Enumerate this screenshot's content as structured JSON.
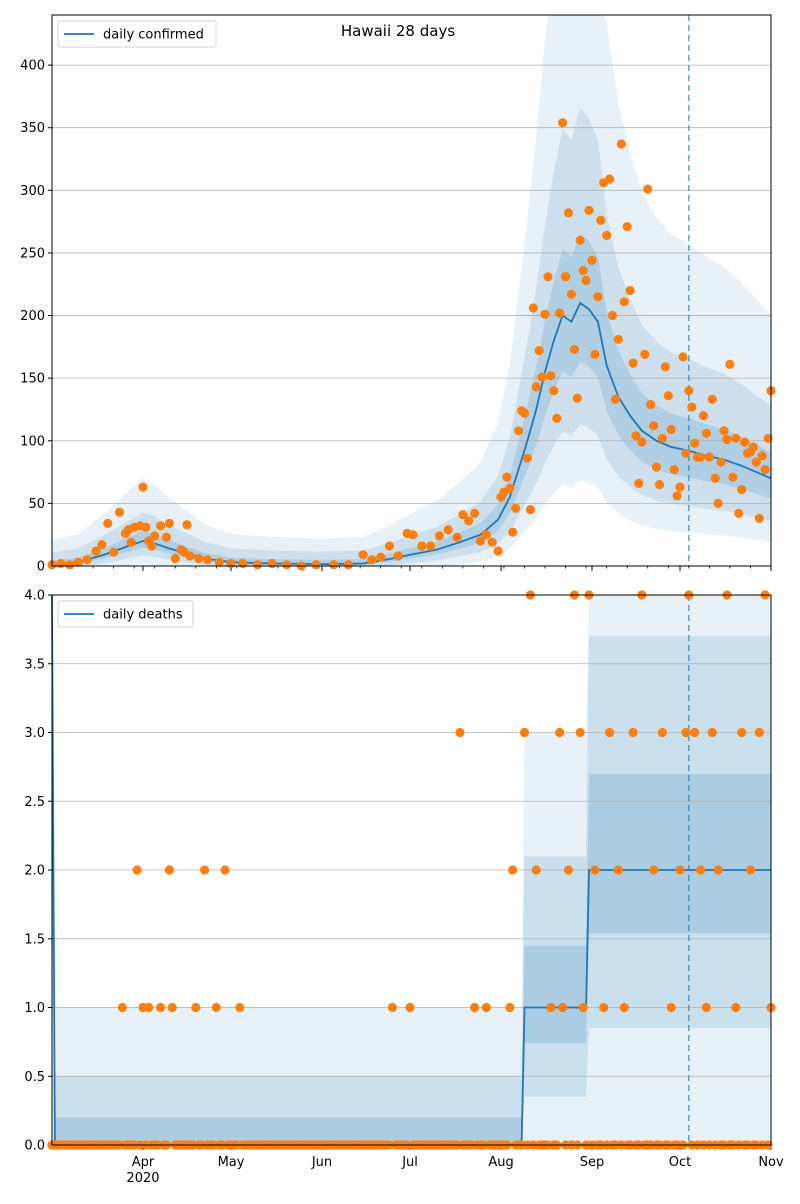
{
  "chart_data": [
    {
      "type": "line",
      "title": "Hawaii 28 days",
      "legend": [
        {
          "label": "daily confirmed",
          "color": "#1f77b4"
        }
      ],
      "legend_position": "top-left",
      "grid": "horizontal",
      "xlim": [
        "2020-03-01",
        "2020-11-01"
      ],
      "ylim": [
        0,
        440
      ],
      "y_ticks": [
        0,
        50,
        100,
        150,
        200,
        250,
        300,
        350,
        400
      ],
      "y_tick_labels": [
        "0",
        "50",
        "100",
        "150",
        "200",
        "250",
        "300",
        "350",
        "400"
      ],
      "x_ticks": [
        "2020-04-01",
        "2020-05-01",
        "2020-06-01",
        "2020-07-01",
        "2020-08-01",
        "2020-09-01",
        "2020-10-01",
        "2020-11-01"
      ],
      "x_tick_labels": [
        "Apr",
        "May",
        "Jun",
        "Jul",
        "Aug",
        "Sep",
        "Oct",
        "Nov"
      ],
      "x_year_label": "2020",
      "forecast_marker": "2020-10-04",
      "model_mean": [
        [
          "2020-03-01",
          1
        ],
        [
          "2020-03-10",
          3
        ],
        [
          "2020-03-20",
          10
        ],
        [
          "2020-03-27",
          16
        ],
        [
          "2020-04-01",
          20
        ],
        [
          "2020-04-05",
          18
        ],
        [
          "2020-04-10",
          14
        ],
        [
          "2020-04-16",
          10
        ],
        [
          "2020-04-22",
          6
        ],
        [
          "2020-05-01",
          3
        ],
        [
          "2020-05-15",
          2
        ],
        [
          "2020-06-01",
          1.5
        ],
        [
          "2020-06-15",
          2
        ],
        [
          "2020-06-25",
          6
        ],
        [
          "2020-07-01",
          9
        ],
        [
          "2020-07-10",
          13
        ],
        [
          "2020-07-18",
          19
        ],
        [
          "2020-07-25",
          25
        ],
        [
          "2020-07-31",
          37
        ],
        [
          "2020-08-04",
          55
        ],
        [
          "2020-08-08",
          85
        ],
        [
          "2020-08-10",
          100
        ],
        [
          "2020-08-13",
          125
        ],
        [
          "2020-08-16",
          155
        ],
        [
          "2020-08-19",
          180
        ],
        [
          "2020-08-22",
          200
        ],
        [
          "2020-08-25",
          195
        ],
        [
          "2020-08-28",
          210
        ],
        [
          "2020-08-31",
          205
        ],
        [
          "2020-09-03",
          195
        ],
        [
          "2020-09-06",
          160
        ],
        [
          "2020-09-10",
          135
        ],
        [
          "2020-09-14",
          120
        ],
        [
          "2020-09-18",
          108
        ],
        [
          "2020-09-23",
          100
        ],
        [
          "2020-09-28",
          95
        ],
        [
          "2020-10-04",
          92
        ],
        [
          "2020-10-10",
          88
        ],
        [
          "2020-10-16",
          85
        ],
        [
          "2020-10-22",
          80
        ],
        [
          "2020-10-27",
          75
        ],
        [
          "2020-11-01",
          70
        ]
      ],
      "observed": [
        [
          "2020-03-01",
          1
        ],
        [
          "2020-03-04",
          2
        ],
        [
          "2020-03-07",
          1
        ],
        [
          "2020-03-10",
          3
        ],
        [
          "2020-03-13",
          5
        ],
        [
          "2020-03-16",
          12
        ],
        [
          "2020-03-18",
          17
        ],
        [
          "2020-03-20",
          34
        ],
        [
          "2020-03-22",
          11
        ],
        [
          "2020-03-24",
          43
        ],
        [
          "2020-03-26",
          26
        ],
        [
          "2020-03-27",
          29
        ],
        [
          "2020-03-28",
          19
        ],
        [
          "2020-03-29",
          31
        ],
        [
          "2020-03-31",
          32
        ],
        [
          "2020-04-01",
          63
        ],
        [
          "2020-04-02",
          31
        ],
        [
          "2020-04-03",
          20
        ],
        [
          "2020-04-04",
          16
        ],
        [
          "2020-04-05",
          24
        ],
        [
          "2020-04-07",
          32
        ],
        [
          "2020-04-09",
          23
        ],
        [
          "2020-04-10",
          34
        ],
        [
          "2020-04-12",
          6
        ],
        [
          "2020-04-14",
          13
        ],
        [
          "2020-04-15",
          11
        ],
        [
          "2020-04-16",
          33
        ],
        [
          "2020-04-17",
          8
        ],
        [
          "2020-04-20",
          6
        ],
        [
          "2020-04-23",
          5
        ],
        [
          "2020-04-27",
          3
        ],
        [
          "2020-05-01",
          2
        ],
        [
          "2020-05-05",
          2
        ],
        [
          "2020-05-10",
          1
        ],
        [
          "2020-05-15",
          2
        ],
        [
          "2020-05-20",
          1
        ],
        [
          "2020-05-25",
          0
        ],
        [
          "2020-05-30",
          1
        ],
        [
          "2020-06-05",
          1
        ],
        [
          "2020-06-10",
          1
        ],
        [
          "2020-06-15",
          9
        ],
        [
          "2020-06-18",
          5
        ],
        [
          "2020-06-21",
          7
        ],
        [
          "2020-06-24",
          16
        ],
        [
          "2020-06-27",
          8
        ],
        [
          "2020-06-30",
          26
        ],
        [
          "2020-07-02",
          25
        ],
        [
          "2020-07-05",
          16
        ],
        [
          "2020-07-08",
          16
        ],
        [
          "2020-07-11",
          24
        ],
        [
          "2020-07-14",
          29
        ],
        [
          "2020-07-17",
          23
        ],
        [
          "2020-07-19",
          41
        ],
        [
          "2020-07-21",
          36
        ],
        [
          "2020-07-23",
          42
        ],
        [
          "2020-07-25",
          20
        ],
        [
          "2020-07-27",
          25
        ],
        [
          "2020-07-29",
          19
        ],
        [
          "2020-07-31",
          12
        ],
        [
          "2020-08-01",
          55
        ],
        [
          "2020-08-02",
          59
        ],
        [
          "2020-08-03",
          71
        ],
        [
          "2020-08-04",
          62
        ],
        [
          "2020-08-05",
          27
        ],
        [
          "2020-08-06",
          46
        ],
        [
          "2020-08-07",
          108
        ],
        [
          "2020-08-08",
          124
        ],
        [
          "2020-08-09",
          122
        ],
        [
          "2020-08-10",
          86
        ],
        [
          "2020-08-11",
          45
        ],
        [
          "2020-08-12",
          206
        ],
        [
          "2020-08-13",
          143
        ],
        [
          "2020-08-14",
          172
        ],
        [
          "2020-08-15",
          151
        ],
        [
          "2020-08-16",
          201
        ],
        [
          "2020-08-17",
          231
        ],
        [
          "2020-08-18",
          152
        ],
        [
          "2020-08-19",
          140
        ],
        [
          "2020-08-20",
          118
        ],
        [
          "2020-08-21",
          202
        ],
        [
          "2020-08-22",
          354
        ],
        [
          "2020-08-23",
          231
        ],
        [
          "2020-08-24",
          282
        ],
        [
          "2020-08-25",
          217
        ],
        [
          "2020-08-26",
          173
        ],
        [
          "2020-08-27",
          134
        ],
        [
          "2020-08-28",
          260
        ],
        [
          "2020-08-29",
          236
        ],
        [
          "2020-08-30",
          228
        ],
        [
          "2020-08-31",
          284
        ],
        [
          "2020-09-01",
          244
        ],
        [
          "2020-09-02",
          169
        ],
        [
          "2020-09-03",
          215
        ],
        [
          "2020-09-04",
          276
        ],
        [
          "2020-09-05",
          306
        ],
        [
          "2020-09-06",
          264
        ],
        [
          "2020-09-07",
          309
        ],
        [
          "2020-09-08",
          200
        ],
        [
          "2020-09-09",
          133
        ],
        [
          "2020-09-10",
          181
        ],
        [
          "2020-09-11",
          337
        ],
        [
          "2020-09-12",
          211
        ],
        [
          "2020-09-13",
          271
        ],
        [
          "2020-09-14",
          220
        ],
        [
          "2020-09-15",
          162
        ],
        [
          "2020-09-16",
          104
        ],
        [
          "2020-09-17",
          66
        ],
        [
          "2020-09-18",
          99
        ],
        [
          "2020-09-19",
          169
        ],
        [
          "2020-09-20",
          301
        ],
        [
          "2020-09-21",
          129
        ],
        [
          "2020-09-22",
          112
        ],
        [
          "2020-09-23",
          79
        ],
        [
          "2020-09-24",
          65
        ],
        [
          "2020-09-25",
          102
        ],
        [
          "2020-09-26",
          159
        ],
        [
          "2020-09-27",
          136
        ],
        [
          "2020-09-28",
          109
        ],
        [
          "2020-09-29",
          77
        ],
        [
          "2020-09-30",
          56
        ],
        [
          "2020-10-01",
          63
        ],
        [
          "2020-10-02",
          167
        ],
        [
          "2020-10-03",
          90
        ],
        [
          "2020-10-04",
          140
        ],
        [
          "2020-10-05",
          127
        ],
        [
          "2020-10-06",
          98
        ],
        [
          "2020-10-07",
          87
        ],
        [
          "2020-10-08",
          87
        ],
        [
          "2020-10-09",
          120
        ],
        [
          "2020-10-10",
          106
        ],
        [
          "2020-10-11",
          87
        ],
        [
          "2020-10-12",
          133
        ],
        [
          "2020-10-13",
          70
        ],
        [
          "2020-10-14",
          50
        ],
        [
          "2020-10-15",
          83
        ],
        [
          "2020-10-16",
          108
        ],
        [
          "2020-10-17",
          101
        ],
        [
          "2020-10-18",
          161
        ],
        [
          "2020-10-19",
          71
        ],
        [
          "2020-10-20",
          102
        ],
        [
          "2020-10-21",
          42
        ],
        [
          "2020-10-22",
          61
        ],
        [
          "2020-10-23",
          99
        ],
        [
          "2020-10-24",
          90
        ],
        [
          "2020-10-25",
          91
        ],
        [
          "2020-10-26",
          95
        ],
        [
          "2020-10-27",
          83
        ],
        [
          "2020-10-28",
          38
        ],
        [
          "2020-10-29",
          88
        ],
        [
          "2020-10-30",
          77
        ],
        [
          "2020-10-31",
          102
        ],
        [
          "2020-11-01",
          140
        ]
      ]
    },
    {
      "type": "line",
      "legend": [
        {
          "label": "daily deaths",
          "color": "#1f77b4"
        }
      ],
      "legend_position": "top-left",
      "grid": "horizontal",
      "xlim": [
        "2020-03-01",
        "2020-11-01"
      ],
      "ylim": [
        0,
        4
      ],
      "y_ticks": [
        0,
        0.5,
        1,
        1.5,
        2,
        2.5,
        3,
        3.5,
        4
      ],
      "y_tick_labels": [
        "0.0",
        "0.5",
        "1.0",
        "1.5",
        "2.0",
        "2.5",
        "3.0",
        "3.5",
        "4.0"
      ],
      "x_ticks": [
        "2020-04-01",
        "2020-05-01",
        "2020-06-01",
        "2020-07-01",
        "2020-08-01",
        "2020-09-01",
        "2020-10-01",
        "2020-11-01"
      ],
      "x_tick_labels": [
        "Apr",
        "May",
        "Jun",
        "Jul",
        "Aug",
        "Sep",
        "Oct",
        "Nov"
      ],
      "x_year_label": "2020",
      "forecast_marker": "2020-10-04",
      "model_mean": [
        [
          "2020-03-01",
          4
        ],
        [
          "2020-03-02",
          0
        ],
        [
          "2020-08-08",
          0
        ],
        [
          "2020-08-09",
          1
        ],
        [
          "2020-08-24",
          1
        ],
        [
          "2020-08-30",
          1
        ],
        [
          "2020-08-31",
          2
        ],
        [
          "2020-11-01",
          2
        ]
      ],
      "observed": [
        [
          "2020-03-25",
          1
        ],
        [
          "2020-03-30",
          2
        ],
        [
          "2020-04-01",
          1
        ],
        [
          "2020-04-03",
          1
        ],
        [
          "2020-04-07",
          1
        ],
        [
          "2020-04-10",
          2
        ],
        [
          "2020-04-11",
          1
        ],
        [
          "2020-04-19",
          1
        ],
        [
          "2020-04-22",
          2
        ],
        [
          "2020-04-26",
          1
        ],
        [
          "2020-04-29",
          2
        ],
        [
          "2020-05-04",
          1
        ],
        [
          "2020-06-25",
          1
        ],
        [
          "2020-07-01",
          1
        ],
        [
          "2020-07-18",
          3
        ],
        [
          "2020-07-23",
          1
        ],
        [
          "2020-07-27",
          1
        ],
        [
          "2020-08-04",
          1
        ],
        [
          "2020-08-05",
          2
        ],
        [
          "2020-08-09",
          3
        ],
        [
          "2020-08-11",
          4
        ],
        [
          "2020-08-13",
          2
        ],
        [
          "2020-08-18",
          1
        ],
        [
          "2020-08-21",
          3
        ],
        [
          "2020-08-22",
          1
        ],
        [
          "2020-08-24",
          2
        ],
        [
          "2020-08-26",
          4
        ],
        [
          "2020-08-28",
          3
        ],
        [
          "2020-08-29",
          1
        ],
        [
          "2020-08-31",
          4
        ],
        [
          "2020-09-02",
          2
        ],
        [
          "2020-09-05",
          1
        ],
        [
          "2020-09-07",
          3
        ],
        [
          "2020-09-10",
          2
        ],
        [
          "2020-09-12",
          1
        ],
        [
          "2020-09-15",
          3
        ],
        [
          "2020-09-18",
          4
        ],
        [
          "2020-09-22",
          2
        ],
        [
          "2020-09-25",
          3
        ],
        [
          "2020-09-28",
          1
        ],
        [
          "2020-10-01",
          2
        ],
        [
          "2020-10-03",
          3
        ],
        [
          "2020-10-04",
          4
        ],
        [
          "2020-10-06",
          3
        ],
        [
          "2020-10-08",
          2
        ],
        [
          "2020-10-10",
          1
        ],
        [
          "2020-10-12",
          3
        ],
        [
          "2020-10-14",
          2
        ],
        [
          "2020-10-17",
          4
        ],
        [
          "2020-10-20",
          1
        ],
        [
          "2020-10-22",
          3
        ],
        [
          "2020-10-25",
          2
        ],
        [
          "2020-10-28",
          3
        ],
        [
          "2020-10-30",
          4
        ],
        [
          "2020-11-01",
          1
        ]
      ]
    }
  ]
}
